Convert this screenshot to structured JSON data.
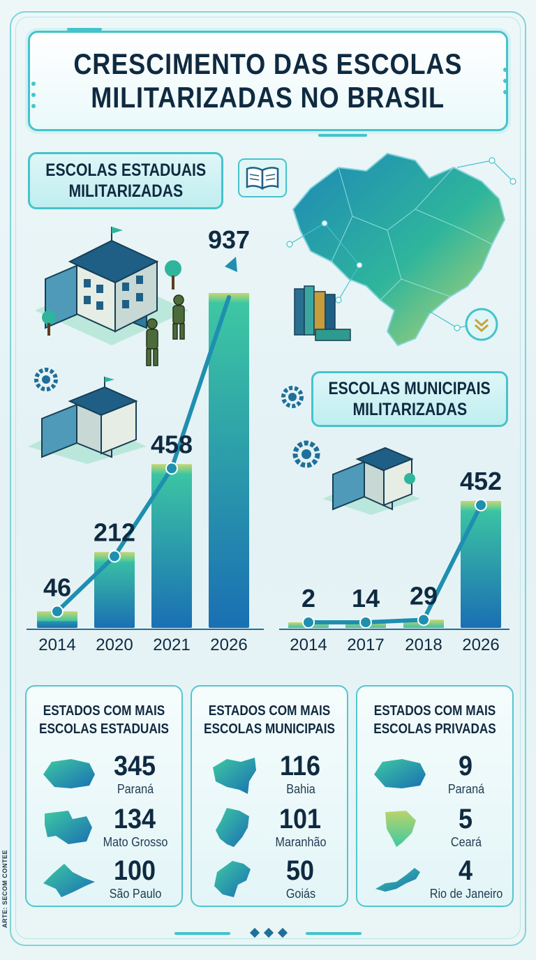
{
  "title": {
    "line1": "CRESCIMENTO DAS ESCOLAS",
    "line2": "MILITARIZADAS NO BRASIL"
  },
  "estaduais": {
    "label_line1": "ESCOLAS ESTADUAIS",
    "label_line2": "MILITARIZADAS"
  },
  "municipais": {
    "label_line1": "ESCOLAS MUNICIPAIS",
    "label_line2": "MILITARIZADAS"
  },
  "chart_data": [
    {
      "type": "bar",
      "title": "ESCOLAS ESTADUAIS MILITARIZADAS",
      "categories": [
        "2014",
        "2020",
        "2021",
        "2026"
      ],
      "values": [
        46,
        212,
        458,
        937
      ],
      "trend_line": true,
      "ylim": [
        0,
        937
      ]
    },
    {
      "type": "bar",
      "title": "ESCOLAS MUNICIPAIS MILITARIZADAS",
      "categories": [
        "2014",
        "2017",
        "2018",
        "2026"
      ],
      "values": [
        2,
        14,
        29,
        452
      ],
      "trend_line": true,
      "ylim": [
        0,
        452
      ]
    }
  ],
  "stats": [
    {
      "heading_line1": "ESTADOS COM MAIS",
      "heading_line2": "ESCOLAS ESTADUAIS",
      "items": [
        {
          "value": "345",
          "state": "Paraná",
          "icon": "parana-map-icon"
        },
        {
          "value": "134",
          "state": "Mato Grosso",
          "icon": "mato-grosso-map-icon"
        },
        {
          "value": "100",
          "state": "São Paulo",
          "icon": "sao-paulo-map-icon"
        }
      ]
    },
    {
      "heading_line1": "ESTADOS COM MAIS",
      "heading_line2": "ESCOLAS MUNICIPAIS",
      "items": [
        {
          "value": "116",
          "state": "Bahia",
          "icon": "bahia-map-icon"
        },
        {
          "value": "101",
          "state": "Maranhão",
          "icon": "maranhao-map-icon"
        },
        {
          "value": "50",
          "state": "Goiás",
          "icon": "goias-map-icon"
        }
      ]
    },
    {
      "heading_line1": "ESTADOS COM MAIS",
      "heading_line2": "ESCOLAS PRIVADAS",
      "items": [
        {
          "value": "9",
          "state": "Paraná",
          "icon": "parana-map-icon"
        },
        {
          "value": "5",
          "state": "Ceará",
          "icon": "ceara-map-icon"
        },
        {
          "value": "4",
          "state": "Rio de Janeiro",
          "icon": "rio-de-janeiro-map-icon"
        }
      ]
    }
  ],
  "credit": "ARTE: SECOM CONTEE",
  "colors": {
    "bar_top": "#3ec9a2",
    "bar_bottom": "#1a6fb3",
    "trend": "#1f8fb0",
    "accent": "#45c3cc",
    "text": "#0f2a40"
  }
}
